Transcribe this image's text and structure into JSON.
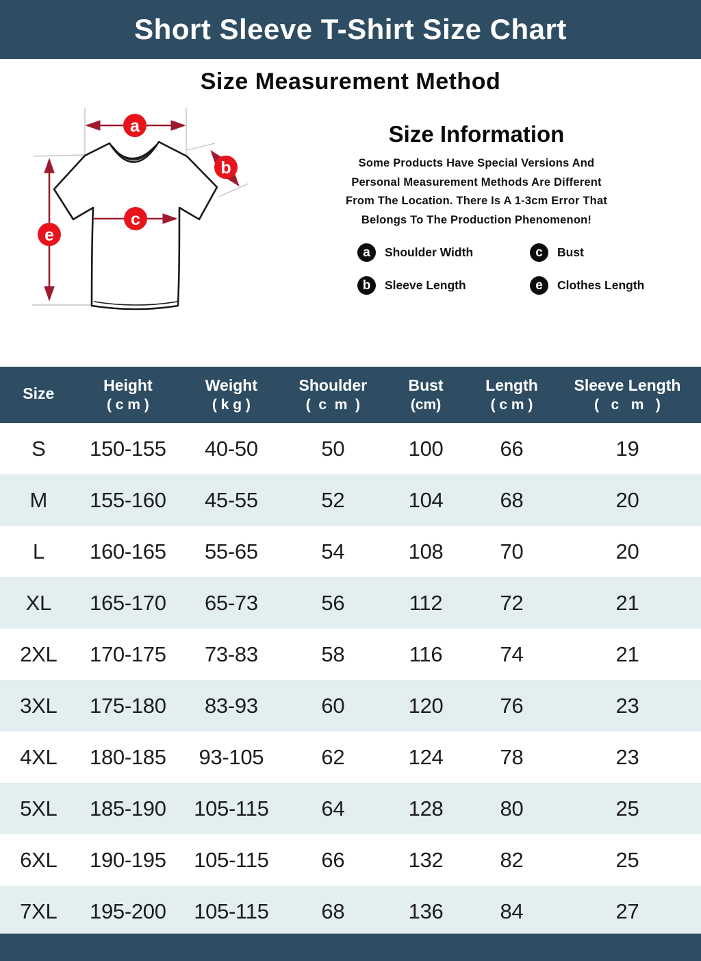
{
  "banner": {
    "title": "Short Sleeve T-Shirt Size Chart"
  },
  "section": {
    "method_title": "Size Measurement Method"
  },
  "size_info": {
    "title": "Size Information",
    "note_lines": [
      "Some Products Have Special Versions And",
      "Personal Measurement Methods Are Different",
      "From The Location. There Is A 1-3cm Error That",
      "Belongs To The Production Phenomenon!"
    ],
    "legend": [
      {
        "key": "a",
        "label": "Shoulder Width"
      },
      {
        "key": "c",
        "label": "Bust"
      },
      {
        "key": "b",
        "label": "Sleeve Length"
      },
      {
        "key": "e",
        "label": "Clothes Length"
      }
    ]
  },
  "diagram": {
    "markers": {
      "a": "a",
      "b": "b",
      "c": "c",
      "e": "e"
    }
  },
  "table": {
    "headers": [
      {
        "label": "Size",
        "unit": ""
      },
      {
        "label": "Height",
        "unit": "( c m )"
      },
      {
        "label": "Weight",
        "unit": "( k g )"
      },
      {
        "label": "Shoulder",
        "unit": "(  c  m  )"
      },
      {
        "label": "Bust",
        "unit": "(cm)"
      },
      {
        "label": "Length",
        "unit": "( c m )"
      },
      {
        "label": "Sleeve Length",
        "unit": "(   c   m   )"
      }
    ]
  },
  "chart_data": {
    "type": "table",
    "title": "Short Sleeve T-Shirt Size Chart",
    "columns": [
      "Size",
      "Height (cm)",
      "Weight (kg)",
      "Shoulder (cm)",
      "Bust (cm)",
      "Length (cm)",
      "Sleeve Length (cm)"
    ],
    "rows": [
      [
        "S",
        "150-155",
        "40-50",
        "50",
        "100",
        "66",
        "19"
      ],
      [
        "M",
        "155-160",
        "45-55",
        "52",
        "104",
        "68",
        "20"
      ],
      [
        "L",
        "160-165",
        "55-65",
        "54",
        "108",
        "70",
        "20"
      ],
      [
        "XL",
        "165-170",
        "65-73",
        "56",
        "112",
        "72",
        "21"
      ],
      [
        "2XL",
        "170-175",
        "73-83",
        "58",
        "116",
        "74",
        "21"
      ],
      [
        "3XL",
        "175-180",
        "83-93",
        "60",
        "120",
        "76",
        "23"
      ],
      [
        "4XL",
        "180-185",
        "93-105",
        "62",
        "124",
        "78",
        "23"
      ],
      [
        "5XL",
        "185-190",
        "105-115",
        "64",
        "128",
        "80",
        "25"
      ],
      [
        "6XL",
        "190-195",
        "105-115",
        "66",
        "132",
        "82",
        "25"
      ],
      [
        "7XL",
        "195-200",
        "105-115",
        "68",
        "136",
        "84",
        "27"
      ]
    ]
  },
  "colors": {
    "banner_bg": "#2e4d63",
    "row_alt_bg": "#e3eef0",
    "marker_red": "#e8141c",
    "arrow_red": "#9e1b2f",
    "legend_badge_bg": "#0d0d0d"
  }
}
